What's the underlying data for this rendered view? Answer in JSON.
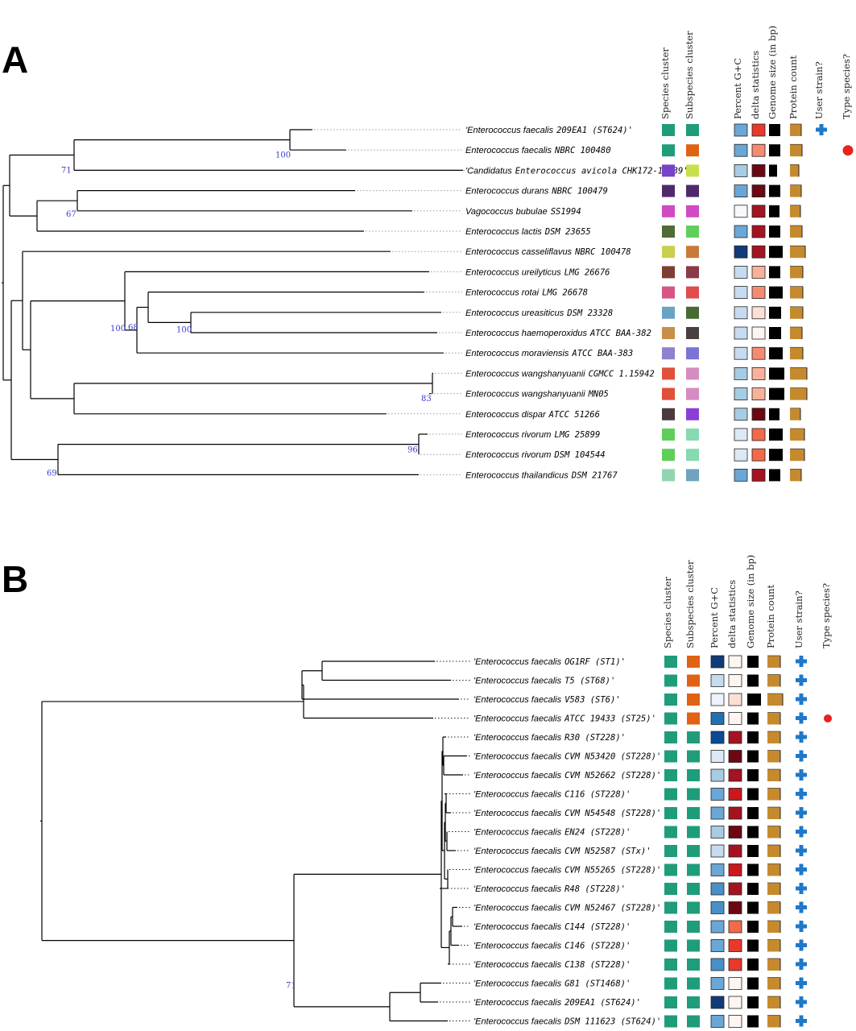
{
  "panels": [
    {
      "label": "A",
      "column_headers": [
        "Species cluster",
        "Subspecies cluster",
        "Percent G+C",
        "delta statistics",
        "Genome size (in bp)",
        "Protein count",
        "User strain?",
        "Type species?"
      ],
      "support_values": [
        {
          "value": "100",
          "node": "n_209"
        },
        {
          "value": "71",
          "node": "n_faec"
        },
        {
          "value": "67",
          "node": "n_dur"
        },
        {
          "value": "100",
          "node": "n_bigclade"
        },
        {
          "value": "100",
          "node": "n_ureas"
        },
        {
          "value": "68",
          "node": "n_urei"
        },
        {
          "value": "83",
          "node": "n_wang"
        },
        {
          "value": "96",
          "node": "n_riv"
        },
        {
          "value": "69",
          "node": "n_rivthai"
        }
      ],
      "leaves": [
        {
          "genus": "Enterococcus faecalis",
          "rest": "209EA1 (ST624)'",
          "open_quote": "'",
          "species": "#1f9c7a",
          "subspecies": "#1f9c7a",
          "gc": "#6aa7d6",
          "delta": "#e8392b",
          "genome": 1.0,
          "protein": 0.9,
          "user": true,
          "type": false
        },
        {
          "genus": "Enterococcus faecalis",
          "rest": "NBRC 100480",
          "open_quote": "",
          "species": "#1f9c7a",
          "subspecies": "#e06214",
          "gc": "#6aa7d6",
          "delta": "#f58c72",
          "genome": 1.0,
          "protein": 0.95,
          "user": false,
          "type": true
        },
        {
          "genus": "Candidatus",
          "rest": "Enterococcus avicola CHK172-16539'*",
          "open_quote": "'",
          "species": "#7642c8",
          "subspecies": "#c6e04c",
          "gc": "#a7cbe3",
          "delta": "#6d0712",
          "genome": 0.7,
          "protein": 0.7,
          "user": false,
          "type": false
        },
        {
          "genus": "Enterococcus durans",
          "rest": "NBRC 100479",
          "open_quote": "",
          "species": "#4f2a6a",
          "subspecies": "#4f2a6a",
          "gc": "#6aa7d6",
          "delta": "#6d0712",
          "genome": 1.0,
          "protein": 0.85,
          "user": false,
          "type": false
        },
        {
          "genus": "Vagococcus bubulae",
          "rest": "SS1994",
          "open_quote": "",
          "species": "#cf4bc4",
          "subspecies": "#cf4bc4",
          "gc": "#f6f8fb",
          "delta": "#a51320",
          "genome": 0.9,
          "protein": 0.8,
          "user": false,
          "type": false
        },
        {
          "genus": "Enterococcus lactis",
          "rest": "DSM 23655",
          "open_quote": "",
          "species": "#4f6b36",
          "subspecies": "#5fcf5a",
          "gc": "#6aa7d6",
          "delta": "#a51320",
          "genome": 1.0,
          "protein": 0.95,
          "user": false,
          "type": false
        },
        {
          "genus": "Enterococcus casseliflavus",
          "rest": "NBRC 100478",
          "open_quote": "",
          "species": "#c9cf4f",
          "subspecies": "#c97a38",
          "gc": "#103a78",
          "delta": "#a51320",
          "genome": 1.2,
          "protein": 1.2,
          "user": false,
          "type": false
        },
        {
          "genus": "Enterococcus ureilyticus",
          "rest": "LMG 26676",
          "open_quote": "",
          "species": "#7d3e34",
          "subspecies": "#8a3a48",
          "gc": "#c6dbef",
          "delta": "#f9b29a",
          "genome": 1.0,
          "protein": 1.0,
          "user": false,
          "type": false
        },
        {
          "genus": "Enterococcus rotai",
          "rest": "LMG 26678",
          "open_quote": "",
          "species": "#d65585",
          "subspecies": "#e04c4c",
          "gc": "#c6dbef",
          "delta": "#f58c72",
          "genome": 1.2,
          "protein": 1.0,
          "user": false,
          "type": false
        },
        {
          "genus": "Enterococcus ureasiticus",
          "rest": "DSM 23328",
          "open_quote": "",
          "species": "#6aa3c2",
          "subspecies": "#4a6a34",
          "gc": "#c6dbef",
          "delta": "#fde0d4",
          "genome": 1.1,
          "protein": 1.0,
          "user": false,
          "type": false
        },
        {
          "genus": "Enterococcus haemoperoxidus",
          "rest": "ATCC BAA-382",
          "open_quote": "",
          "species": "#c98e48",
          "subspecies": "#4a3f40",
          "gc": "#c6dbef",
          "delta": "#fff5f0",
          "genome": 1.1,
          "protein": 0.95,
          "user": false,
          "type": false
        },
        {
          "genus": "Enterococcus moraviensis",
          "rest": "ATCC BAA-383",
          "open_quote": "",
          "species": "#9080d0",
          "subspecies": "#7a74d6",
          "gc": "#c6dbef",
          "delta": "#f58c72",
          "genome": 1.2,
          "protein": 1.0,
          "user": false,
          "type": false
        },
        {
          "genus": "Enterococcus wangshanyuanii",
          "rest": "CGMCC 1.15942",
          "open_quote": "",
          "species": "#e0503a",
          "subspecies": "#d68cc0",
          "gc": "#a7cbe3",
          "delta": "#f9b29a",
          "genome": 1.35,
          "protein": 1.3,
          "user": false,
          "type": false
        },
        {
          "genus": "Enterococcus wangshanyuanii",
          "rest": "MN05",
          "open_quote": "",
          "species": "#e0503a",
          "subspecies": "#d68cc0",
          "gc": "#a7cbe3",
          "delta": "#f9b29a",
          "genome": 1.35,
          "protein": 1.3,
          "user": false,
          "type": false
        },
        {
          "genus": "Enterococcus dispar",
          "rest": "ATCC 51266",
          "open_quote": "",
          "species": "#4a3a40",
          "subspecies": "#8a3ed6",
          "gc": "#a7cbe3",
          "delta": "#6d0712",
          "genome": 0.9,
          "protein": 0.8,
          "user": false,
          "type": false
        },
        {
          "genus": "Enterococcus rivorum",
          "rest": "LMG 25899",
          "open_quote": "",
          "species": "#5fcf5a",
          "subspecies": "#86d9b0",
          "gc": "#dce9f5",
          "delta": "#f26a4a",
          "genome": 1.2,
          "protein": 1.1,
          "user": false,
          "type": false
        },
        {
          "genus": "Enterococcus rivorum",
          "rest": "DSM 104544",
          "open_quote": "",
          "species": "#5fcf5a",
          "subspecies": "#86d9b0",
          "gc": "#dce9f5",
          "delta": "#f26a4a",
          "genome": 1.2,
          "protein": 1.15,
          "user": false,
          "type": false
        },
        {
          "genus": "Enterococcus thailandicus",
          "rest": "DSM 21767",
          "open_quote": "",
          "species": "#8fd6b0",
          "subspecies": "#6fa3bf",
          "gc": "#6aa7d6",
          "delta": "#a51320",
          "genome": 1.0,
          "protein": 0.9,
          "user": false,
          "type": false
        }
      ]
    },
    {
      "label": "B",
      "column_headers": [
        "Species cluster",
        "Subspecies cluster",
        "Percent G+C",
        "delta statistics",
        "Genome size (in bp)",
        "Protein count",
        "User strain?",
        "Type species?"
      ],
      "support_values": [
        {
          "value": "71",
          "node": "n_root"
        }
      ],
      "leaves": [
        {
          "genus": "Enterococcus faecalis",
          "rest": "OG1RF (ST1)'",
          "open_quote": "'",
          "species": "#1f9c7a",
          "subspecies": "#e06214",
          "gc": "#103a78",
          "delta": "#fff5f0",
          "genome": 1.0,
          "protein": 1.0,
          "user": true,
          "type": false
        },
        {
          "genus": "Enterococcus faecalis",
          "rest": "T5 (ST68)'",
          "open_quote": "'",
          "species": "#1f9c7a",
          "subspecies": "#e06214",
          "gc": "#c6dbef",
          "delta": "#fff5f0",
          "genome": 1.0,
          "protein": 1.0,
          "user": true,
          "type": false
        },
        {
          "genus": "Enterococcus faecalis",
          "rest": "V583 (ST6)'",
          "open_quote": "'",
          "species": "#1f9c7a",
          "subspecies": "#e06214",
          "gc": "#eef3f9",
          "delta": "#fde0d4",
          "genome": 1.2,
          "protein": 1.2,
          "user": true,
          "type": false
        },
        {
          "genus": "Enterococcus faecalis",
          "rest": "ATCC 19433 (ST25)'",
          "open_quote": "'",
          "species": "#1f9c7a",
          "subspecies": "#e06214",
          "gc": "#2171b5",
          "delta": "#fff5f0",
          "genome": 1.0,
          "protein": 1.0,
          "user": true,
          "type": true
        },
        {
          "genus": "Enterococcus faecalis",
          "rest": "R30 (ST228)'",
          "open_quote": "'",
          "species": "#1f9c7a",
          "subspecies": "#1f9c7a",
          "gc": "#0d4a94",
          "delta": "#a51320",
          "genome": 1.0,
          "protein": 1.0,
          "user": true,
          "type": false
        },
        {
          "genus": "Enterococcus faecalis",
          "rest": "CVM N53420 (ST228)'",
          "open_quote": "'",
          "species": "#1f9c7a",
          "subspecies": "#1f9c7a",
          "gc": "#dce9f5",
          "delta": "#6d0712",
          "genome": 1.0,
          "protein": 1.0,
          "user": true,
          "type": false
        },
        {
          "genus": "Enterococcus faecalis",
          "rest": "CVM N52662 (ST228)'",
          "open_quote": "'",
          "species": "#1f9c7a",
          "subspecies": "#1f9c7a",
          "gc": "#a7cbe3",
          "delta": "#a51320",
          "genome": 1.0,
          "protein": 1.0,
          "user": true,
          "type": false
        },
        {
          "genus": "Enterococcus faecalis",
          "rest": "C116 (ST228)'",
          "open_quote": "'",
          "species": "#1f9c7a",
          "subspecies": "#1f9c7a",
          "gc": "#6aa7d6",
          "delta": "#cb181d",
          "genome": 1.0,
          "protein": 1.0,
          "user": true,
          "type": false
        },
        {
          "genus": "Enterococcus faecalis",
          "rest": "CVM N54548 (ST228)'",
          "open_quote": "'",
          "species": "#1f9c7a",
          "subspecies": "#1f9c7a",
          "gc": "#6aa7d6",
          "delta": "#a51320",
          "genome": 1.0,
          "protein": 1.0,
          "user": true,
          "type": false
        },
        {
          "genus": "Enterococcus faecalis",
          "rest": "EN24 (ST228)'",
          "open_quote": "'",
          "species": "#1f9c7a",
          "subspecies": "#1f9c7a",
          "gc": "#a7cbe3",
          "delta": "#6d0712",
          "genome": 1.0,
          "protein": 1.0,
          "user": true,
          "type": false
        },
        {
          "genus": "Enterococcus faecalis",
          "rest": "CVM N52587 (STx)'",
          "open_quote": "'",
          "species": "#1f9c7a",
          "subspecies": "#1f9c7a",
          "gc": "#c6dbef",
          "delta": "#a51320",
          "genome": 1.0,
          "protein": 1.0,
          "user": true,
          "type": false
        },
        {
          "genus": "Enterococcus faecalis",
          "rest": "CVM N55265 (ST228)'",
          "open_quote": "'",
          "species": "#1f9c7a",
          "subspecies": "#1f9c7a",
          "gc": "#6aa7d6",
          "delta": "#cb181d",
          "genome": 1.0,
          "protein": 1.0,
          "user": true,
          "type": false
        },
        {
          "genus": "Enterococcus faecalis",
          "rest": "R48 (ST228)'",
          "open_quote": "'",
          "species": "#1f9c7a",
          "subspecies": "#1f9c7a",
          "gc": "#4a90c8",
          "delta": "#a51320",
          "genome": 1.0,
          "protein": 1.0,
          "user": true,
          "type": false
        },
        {
          "genus": "Enterococcus faecalis",
          "rest": "CVM N52467 (ST228)'",
          "open_quote": "'",
          "species": "#1f9c7a",
          "subspecies": "#1f9c7a",
          "gc": "#4a90c8",
          "delta": "#6d0712",
          "genome": 1.0,
          "protein": 1.0,
          "user": true,
          "type": false
        },
        {
          "genus": "Enterococcus faecalis",
          "rest": "C144 (ST228)'",
          "open_quote": "'",
          "species": "#1f9c7a",
          "subspecies": "#1f9c7a",
          "gc": "#6aa7d6",
          "delta": "#f26a4a",
          "genome": 1.0,
          "protein": 1.0,
          "user": true,
          "type": false
        },
        {
          "genus": "Enterococcus faecalis",
          "rest": "C146 (ST228)'",
          "open_quote": "'",
          "species": "#1f9c7a",
          "subspecies": "#1f9c7a",
          "gc": "#6aa7d6",
          "delta": "#e8392b",
          "genome": 1.0,
          "protein": 1.0,
          "user": true,
          "type": false
        },
        {
          "genus": "Enterococcus faecalis",
          "rest": "C138 (ST228)'",
          "open_quote": "'",
          "species": "#1f9c7a",
          "subspecies": "#1f9c7a",
          "gc": "#4a90c8",
          "delta": "#e8392b",
          "genome": 1.0,
          "protein": 1.0,
          "user": true,
          "type": false
        },
        {
          "genus": "Enterococcus faecalis",
          "rest": "G81 (ST1468)'",
          "open_quote": "'",
          "species": "#1f9c7a",
          "subspecies": "#1f9c7a",
          "gc": "#6aa7d6",
          "delta": "#fff5f0",
          "genome": 1.0,
          "protein": 1.0,
          "user": true,
          "type": false
        },
        {
          "genus": "Enterococcus faecalis",
          "rest": "209EA1 (ST624)'",
          "open_quote": "'",
          "species": "#1f9c7a",
          "subspecies": "#1f9c7a",
          "gc": "#103a78",
          "delta": "#fff5f0",
          "genome": 1.0,
          "protein": 1.0,
          "user": true,
          "type": false
        },
        {
          "genus": "Enterococcus faecalis",
          "rest": "DSM 111623 (ST624)'",
          "open_quote": "'",
          "species": "#1f9c7a",
          "subspecies": "#1f9c7a",
          "gc": "#6aa7d6",
          "delta": "#fff5f0",
          "genome": 1.0,
          "protein": 1.0,
          "user": true,
          "type": false
        }
      ]
    }
  ]
}
